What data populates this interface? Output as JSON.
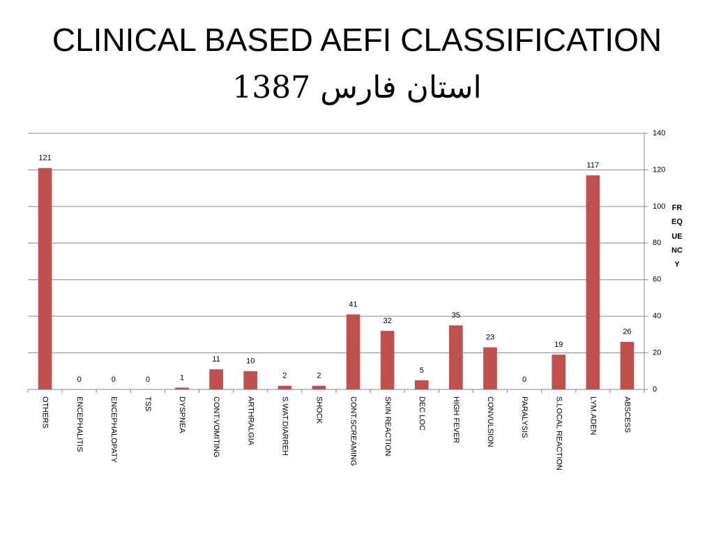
{
  "chart_data": {
    "type": "bar",
    "title": "CLINICAL BASED AEFI CLASSIFICATION",
    "subtitle": "استان فارس 1387",
    "y_label": "FREQUENCY",
    "categories": [
      "OTHERS",
      "ENCEPHALITIS",
      "ENCEPHALOPATY",
      "TSS",
      "DYSPNEA",
      "CONT.VOMITING",
      "ARTHRALGIA",
      "S.WAT.DIARREH",
      "SHOCK",
      "CONT.SCREAMING",
      "SKIN REACTION",
      "DEC LOC",
      "HIGH FEVER",
      "CONVULSION",
      "PARALYSIS",
      "S.LOCAL REACTION",
      "LYM.ADEN",
      "ABSCESS"
    ],
    "values": [
      121,
      0,
      0,
      0,
      1,
      11,
      10,
      2,
      2,
      41,
      32,
      5,
      35,
      23,
      0,
      19,
      117,
      26
    ],
    "color": "#c0504d",
    "ylim": [
      0,
      140
    ],
    "yticks": [
      0,
      20,
      40,
      60,
      80,
      100,
      120,
      140
    ],
    "y_axis_side": "right",
    "grid": true
  }
}
